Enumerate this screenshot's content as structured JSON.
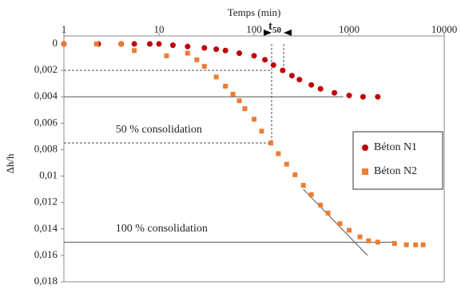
{
  "chart_data": {
    "type": "scatter",
    "xlabel": "Temps (min)",
    "ylabel": "Δh/h",
    "xscale": "log",
    "yinverted": true,
    "xlim": [
      1,
      10000
    ],
    "xticks": [
      1,
      10,
      100,
      1000,
      10000
    ],
    "ylim": [
      0,
      0.018
    ],
    "yticks": [
      0,
      {
        "value": 0.002,
        "label": "0,002"
      },
      {
        "value": 0.004,
        "label": "0,004"
      },
      {
        "value": 0.006,
        "label": "0,006"
      },
      {
        "value": 0.008,
        "label": "0,008"
      },
      {
        "value": 0.01,
        "label": "0,01"
      },
      {
        "value": 0.012,
        "label": "0,012"
      },
      {
        "value": 0.014,
        "label": "0,014"
      },
      {
        "value": 0.016,
        "label": "0,016"
      },
      {
        "value": 0.018,
        "label": "0,018"
      }
    ],
    "legend": "right",
    "series": [
      {
        "name": "Béton N1",
        "color": "#c00000",
        "marker": "circle",
        "x": [
          1,
          2.3,
          4,
          5.5,
          8,
          10,
          14,
          20,
          30,
          40,
          50,
          70,
          100,
          130,
          160,
          200,
          250,
          300,
          400,
          500,
          700,
          1000,
          1400,
          2000
        ],
        "values": [
          0,
          0,
          0,
          0,
          0,
          0,
          0.0001,
          0.0002,
          0.0003,
          0.0004,
          0.0005,
          0.0007,
          0.0009,
          0.0012,
          0.0016,
          0.002,
          0.0024,
          0.0027,
          0.0031,
          0.0034,
          0.0037,
          0.0039,
          0.004,
          0.004
        ]
      },
      {
        "name": "Béton N2",
        "color": "#ed7d31",
        "marker": "square",
        "x": [
          1,
          2.2,
          4,
          5.5,
          12,
          20,
          25,
          30,
          40,
          50,
          60,
          70,
          80,
          100,
          120,
          150,
          180,
          220,
          270,
          330,
          400,
          500,
          600,
          800,
          1000,
          1300,
          1600,
          2000,
          3000,
          4000,
          5000,
          6000
        ],
        "values": [
          0,
          0,
          0,
          0.0005,
          0.0009,
          0.0007,
          0.0012,
          0.0017,
          0.0025,
          0.0032,
          0.0038,
          0.0043,
          0.0049,
          0.0057,
          0.0066,
          0.0075,
          0.0083,
          0.0091,
          0.0099,
          0.0107,
          0.0114,
          0.0122,
          0.0128,
          0.0136,
          0.0141,
          0.0146,
          0.0149,
          0.015,
          0.0151,
          0.0152,
          0.0152,
          0.0152
        ]
      }
    ],
    "reference_lines": [
      {
        "x": [
          1,
          870
        ],
        "y": [
          0.004,
          0.004
        ],
        "style": "solid"
      },
      {
        "x": [
          1,
          3000
        ],
        "y": [
          0.015,
          0.015
        ],
        "style": "solid"
      },
      {
        "x": [
          330,
          1560
        ],
        "y": [
          0.011,
          0.016
        ],
        "style": "solid"
      },
      {
        "x": [
          1,
          153
        ],
        "y": [
          0.002,
          0.002
        ],
        "style": "dashed"
      },
      {
        "x": [
          1,
          153
        ],
        "y": [
          0.0075,
          0.0075
        ],
        "style": "dashed"
      },
      {
        "x": [
          153,
          153
        ],
        "y": [
          0,
          0.0075
        ],
        "style": "dashed"
      },
      {
        "x": [
          205,
          205
        ],
        "y": [
          0,
          0.002
        ],
        "style": "dashed"
      }
    ],
    "annotations": [
      {
        "text": "50 % consolidation",
        "x": 3.5,
        "y": 0.0065
      },
      {
        "text": "100 % consolidation",
        "x": 3.5,
        "y": 0.014
      }
    ],
    "t_marker": {
      "text": "t",
      "subscript": "50"
    }
  }
}
